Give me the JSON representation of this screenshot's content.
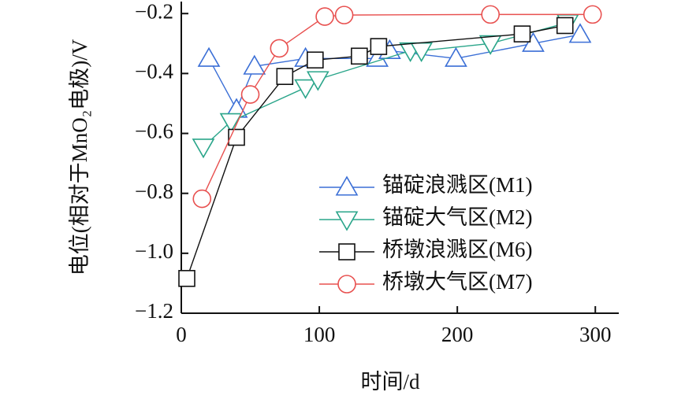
{
  "chart_data": {
    "type": "line",
    "xlabel": "时间/d",
    "ylabel": "电位(相对于MnO₂电极)/V",
    "xlim": [
      0,
      317
    ],
    "xticks": [
      0,
      100,
      200,
      300
    ],
    "ylim": [
      -1.2,
      -0.16
    ],
    "yticks": [
      {
        "value": -1.2,
        "label": "−1.2"
      },
      {
        "value": -1.0,
        "label": "−1.0"
      },
      {
        "value": -0.8,
        "label": "−0.8"
      },
      {
        "value": -0.6,
        "label": "−0.6"
      },
      {
        "value": -0.4,
        "label": "−0.4"
      },
      {
        "value": -0.2,
        "label": "−0.2"
      }
    ],
    "legend": "lower right",
    "series": [
      {
        "name": "锚碇浪溅区(M1)",
        "color": "#3b6fd6",
        "marker": "triangle-up",
        "x": [
          20,
          40,
          53,
          90,
          142,
          151,
          199,
          255,
          289
        ],
        "values": [
          -0.35,
          -0.52,
          -0.376,
          -0.35,
          -0.35,
          -0.324,
          -0.35,
          -0.3,
          -0.27
        ]
      },
      {
        "name": "锚碇大气区(M2)",
        "color": "#2aa58a",
        "marker": "triangle-down",
        "x": [
          16,
          36,
          90,
          99,
          166,
          174,
          224,
          280
        ],
        "values": [
          -0.645,
          -0.56,
          -0.447,
          -0.42,
          -0.324,
          -0.324,
          -0.3,
          -0.23
        ]
      },
      {
        "name": "桥墩浪溅区(M6)",
        "color": "#111111",
        "marker": "square",
        "x": [
          4,
          40,
          75,
          97,
          129,
          143,
          247,
          278
        ],
        "values": [
          -1.084,
          -0.613,
          -0.41,
          -0.355,
          -0.342,
          -0.31,
          -0.268,
          -0.24
        ]
      },
      {
        "name": "桥墩大气区(M7)",
        "color": "#e8504f",
        "marker": "circle",
        "x": [
          15,
          50,
          71,
          104,
          118,
          224,
          298
        ],
        "values": [
          -0.818,
          -0.47,
          -0.316,
          -0.21,
          -0.205,
          -0.203,
          -0.203
        ]
      }
    ]
  }
}
